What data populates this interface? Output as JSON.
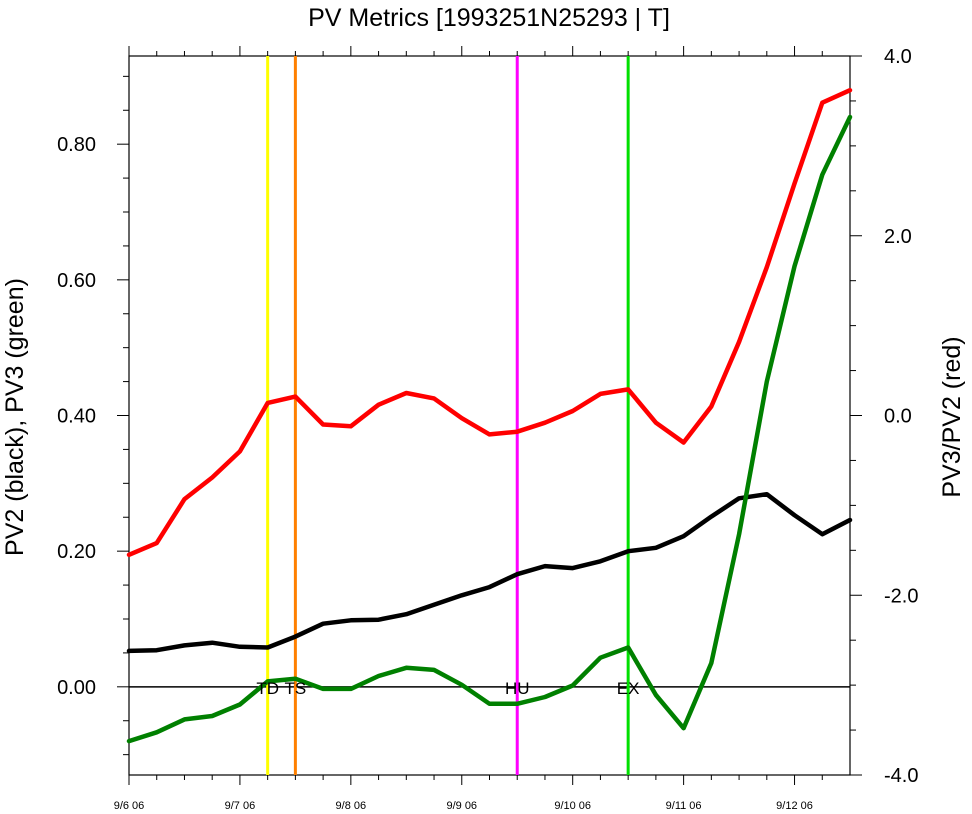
{
  "chart_data": {
    "type": "line",
    "title": "PV Metrics [1993251N25293 | T]",
    "ylabel_left": "PV2 (black), PV3 (green)",
    "ylabel_right": "PV3/PV2 (red)",
    "xlim": [
      0,
      6.5
    ],
    "ylim_left": [
      -0.13,
      0.93
    ],
    "ylim_right": [
      -4.0,
      4.0
    ],
    "x_ticks": [
      {
        "x": 0,
        "label": "9/6 06"
      },
      {
        "x": 1,
        "label": "9/7 06"
      },
      {
        "x": 2,
        "label": "9/8 06"
      },
      {
        "x": 3,
        "label": "9/9 06"
      },
      {
        "x": 4,
        "label": "9/10 06"
      },
      {
        "x": 5,
        "label": "9/11 06"
      },
      {
        "x": 6,
        "label": "9/12 06"
      }
    ],
    "y_ticks_left": [
      {
        "v": 0.0,
        "label": "0.00"
      },
      {
        "v": 0.2,
        "label": "0.20"
      },
      {
        "v": 0.4,
        "label": "0.40"
      },
      {
        "v": 0.6,
        "label": "0.60"
      },
      {
        "v": 0.8,
        "label": "0.80"
      }
    ],
    "y_ticks_right": [
      {
        "v": -4.0,
        "label": "-4.0"
      },
      {
        "v": -2.0,
        "label": "-2.0"
      },
      {
        "v": 0.0,
        "label": "0.0"
      },
      {
        "v": 2.0,
        "label": "2.0"
      },
      {
        "v": 4.0,
        "label": "4.0"
      }
    ],
    "x": [
      0,
      0.25,
      0.5,
      0.75,
      1.0,
      1.25,
      1.5,
      1.75,
      2.0,
      2.25,
      2.5,
      2.75,
      3.0,
      3.25,
      3.5,
      3.75,
      4.0,
      4.25,
      4.5,
      4.75,
      5.0,
      5.25,
      5.5,
      5.75,
      6.0,
      6.25,
      6.5
    ],
    "series": [
      {
        "axis": "left",
        "color": "#000000",
        "values": [
          0.053,
          0.054,
          0.061,
          0.065,
          0.059,
          0.058,
          0.074,
          0.093,
          0.098,
          0.099,
          0.107,
          0.121,
          0.135,
          0.147,
          0.166,
          0.178,
          0.175,
          0.185,
          0.2,
          0.205,
          0.222,
          0.251,
          0.278,
          0.284,
          0.253,
          0.225,
          0.246
        ]
      },
      {
        "axis": "left",
        "color": "#008000",
        "values": [
          -0.08,
          -0.067,
          -0.048,
          -0.043,
          -0.026,
          0.008,
          0.012,
          -0.003,
          -0.003,
          0.016,
          0.028,
          0.025,
          0.003,
          -0.025,
          -0.025,
          -0.015,
          0.002,
          0.043,
          0.058,
          -0.012,
          -0.061,
          0.035,
          0.225,
          0.45,
          0.62,
          0.755,
          0.84
        ]
      },
      {
        "axis": "right",
        "color": "#ff0000",
        "values": [
          -1.55,
          -1.42,
          -0.93,
          -0.69,
          -0.4,
          0.14,
          0.21,
          -0.1,
          -0.12,
          0.12,
          0.25,
          0.19,
          -0.03,
          -0.21,
          -0.18,
          -0.08,
          0.05,
          0.24,
          0.29,
          -0.08,
          -0.3,
          0.1,
          0.82,
          1.65,
          2.58,
          3.48,
          3.62
        ]
      }
    ],
    "markers": [
      {
        "x": 1.25,
        "color": "#ffff00",
        "label": "TD"
      },
      {
        "x": 1.5,
        "color": "#ff8000",
        "label": "TS"
      },
      {
        "x": 3.5,
        "color": "#ff00ff",
        "label": "HU"
      },
      {
        "x": 4.5,
        "color": "#00e000",
        "label": "EX"
      }
    ]
  }
}
